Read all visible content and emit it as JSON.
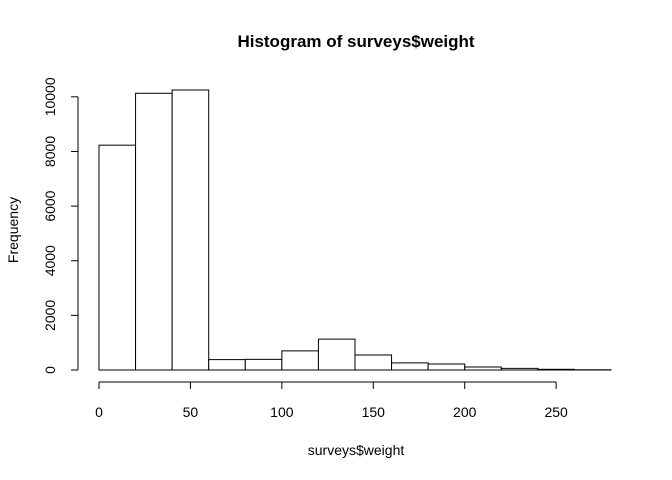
{
  "chart_data": {
    "type": "bar",
    "subtype": "histogram",
    "title": "Histogram of surveys$weight",
    "xlabel": "surveys$weight",
    "ylabel": "Frequency",
    "bins": [
      {
        "start": 0,
        "end": 20,
        "count": 8230
      },
      {
        "start": 20,
        "end": 40,
        "count": 10130
      },
      {
        "start": 40,
        "end": 60,
        "count": 10250
      },
      {
        "start": 60,
        "end": 80,
        "count": 380
      },
      {
        "start": 80,
        "end": 100,
        "count": 390
      },
      {
        "start": 100,
        "end": 120,
        "count": 700
      },
      {
        "start": 120,
        "end": 140,
        "count": 1130
      },
      {
        "start": 140,
        "end": 160,
        "count": 550
      },
      {
        "start": 160,
        "end": 180,
        "count": 260
      },
      {
        "start": 180,
        "end": 200,
        "count": 220
      },
      {
        "start": 200,
        "end": 220,
        "count": 110
      },
      {
        "start": 220,
        "end": 240,
        "count": 60
      },
      {
        "start": 240,
        "end": 260,
        "count": 25
      },
      {
        "start": 260,
        "end": 280,
        "count": 8
      }
    ],
    "xlim": [
      0,
      280
    ],
    "ylim": [
      0,
      10250
    ],
    "x_ticks": [
      0,
      50,
      100,
      150,
      200,
      250
    ],
    "x_tick_labels": [
      "0",
      "50",
      "100",
      "150",
      "200",
      "250"
    ],
    "y_ticks": [
      0,
      2000,
      4000,
      6000,
      8000,
      10000
    ],
    "y_tick_labels": [
      "0",
      "2000",
      "4000",
      "6000",
      "8000",
      "10000"
    ],
    "grid": false,
    "legend": "none",
    "colors": {
      "bar_fill": "#ffffff",
      "bar_stroke": "#000000",
      "background": "#ffffff"
    }
  }
}
